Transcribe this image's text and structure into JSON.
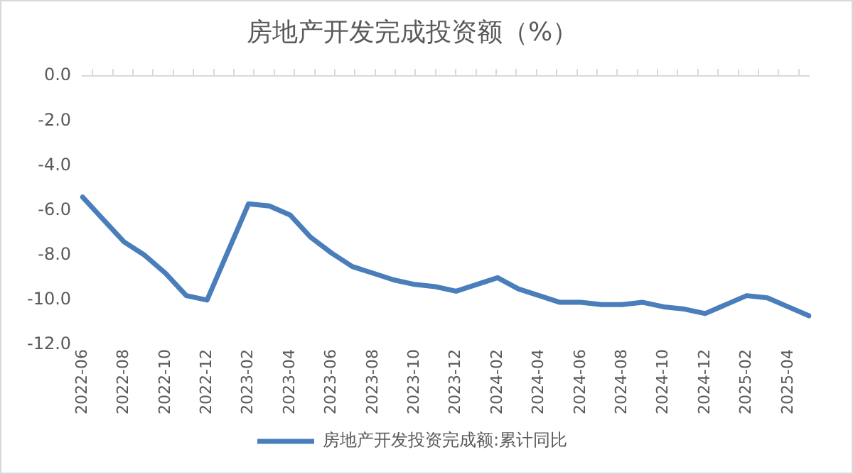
{
  "chart_data": {
    "type": "line",
    "title": "房地产开发完成投资额（%）",
    "categories": [
      "2022-06",
      null,
      "2022-08",
      null,
      "2022-10",
      null,
      "2022-12",
      null,
      "2023-02",
      null,
      "2023-04",
      null,
      "2023-06",
      null,
      "2023-08",
      null,
      "2023-10",
      null,
      "2023-12",
      null,
      "2024-02",
      null,
      "2024-04",
      null,
      "2024-06",
      null,
      "2024-08",
      null,
      "2024-10",
      null,
      "2024-12",
      null,
      "2025-02",
      null,
      "2025-04",
      null
    ],
    "series": [
      {
        "name": "房地产开发投资完成额:累计同比",
        "color": "#4a7ebb",
        "values": [
          -5.4,
          -6.4,
          -7.4,
          -8.0,
          -8.8,
          -9.8,
          -10.0,
          null,
          -5.7,
          -5.8,
          -6.2,
          -7.2,
          -7.9,
          -8.5,
          -8.8,
          -9.1,
          -9.3,
          -9.4,
          -9.6,
          null,
          -9.0,
          -9.5,
          -9.8,
          -10.1,
          -10.1,
          -10.2,
          -10.2,
          -10.1,
          -10.3,
          -10.4,
          -10.6,
          null,
          -9.8,
          -9.9,
          -10.3,
          -10.7
        ]
      }
    ],
    "ylim": [
      -12,
      0
    ],
    "yticks": [
      {
        "value": -12,
        "label": "-12.0"
      },
      {
        "value": -10,
        "label": "-10.0"
      },
      {
        "value": -8,
        "label": "-8.0"
      },
      {
        "value": -6,
        "label": "-6.0"
      },
      {
        "value": -4,
        "label": "-4.0"
      },
      {
        "value": -2,
        "label": "-2.0"
      },
      {
        "value": 0,
        "label": "0.0"
      }
    ],
    "grid": false,
    "legend": "bottom",
    "marker": "none",
    "line_style": "solid"
  }
}
